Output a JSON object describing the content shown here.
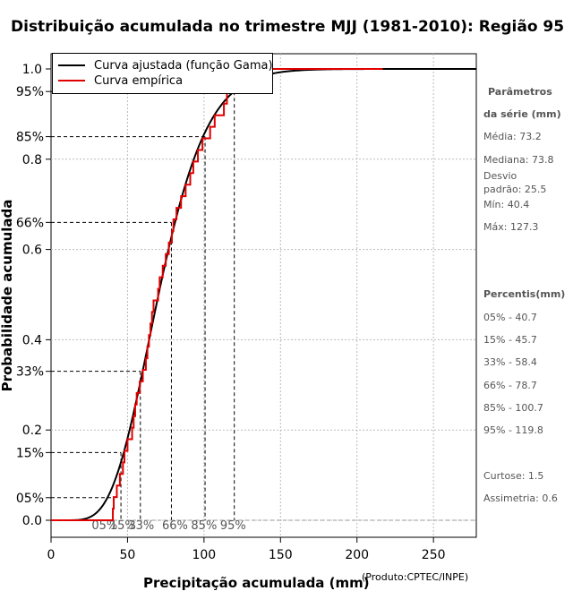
{
  "chart_data": {
    "type": "line",
    "title": "Distribuição acumulada no trimestre MJJ (1981-2010): Região 95",
    "xlabel": "Precipitação acumulada (mm)",
    "ylabel": "Probabilidade acumulada",
    "credit": "(Produto:CPTEC/INPE)",
    "xlim": [
      0,
      278
    ],
    "ylim": [
      0,
      1
    ],
    "x_ticks": [
      0,
      50,
      100,
      150,
      200,
      250
    ],
    "y_ticks": [
      0.0,
      0.2,
      0.4,
      0.6,
      0.8,
      1.0
    ],
    "y_tick_labels": [
      "0.0",
      "0.2",
      "0.4",
      "0.6",
      "0.8",
      "1.0"
    ],
    "percentile_labels": [
      "05%",
      "15%",
      "33%",
      "66%",
      "85%",
      "95%"
    ],
    "percentile_probs": [
      0.05,
      0.15,
      0.33,
      0.66,
      0.85,
      0.95
    ],
    "percentile_values": [
      40.7,
      45.7,
      58.4,
      78.7,
      100.7,
      119.8
    ],
    "percentile_x_positions": [
      35,
      47,
      59,
      81,
      100,
      119
    ],
    "gamma_fit": {
      "mean": 73.2,
      "sd": 25.5
    },
    "empirical_steps_x": [
      40.4,
      41,
      43,
      45,
      47,
      48,
      50,
      53,
      54,
      55,
      56,
      58,
      60,
      62,
      63,
      64,
      65,
      66,
      67,
      70,
      71,
      73,
      75,
      77,
      79,
      80,
      82,
      85,
      88,
      91,
      93,
      96,
      99,
      104,
      107,
      113,
      115,
      116,
      127.3
    ],
    "legend": {
      "position": "top-left",
      "entries": [
        {
          "name": "Curva ajustada (função Gama)",
          "color": "#000000"
        },
        {
          "name": "Curva empírica",
          "color": "#e00000"
        }
      ]
    },
    "grid": true
  },
  "side_panel": {
    "params_title_1": "Parâmetros",
    "params_title_2": "da série (mm)",
    "media": "Média: 73.2",
    "mediana": "Mediana: 73.8",
    "desvio_1": "Desvio",
    "desvio_2": "padrão: 25.5",
    "min": "Mín: 40.4",
    "max": "Máx: 127.3",
    "percentis_title": "Percentis(mm)",
    "p05": "05% - 40.7",
    "p15": "15% - 45.7",
    "p33": "33% - 58.4",
    "p66": "66% - 78.7",
    "p85": "85% - 100.7",
    "p95": "95% - 119.8",
    "curtose": "Curtose: 1.5",
    "assimetria": "Assimetria: 0.6"
  }
}
